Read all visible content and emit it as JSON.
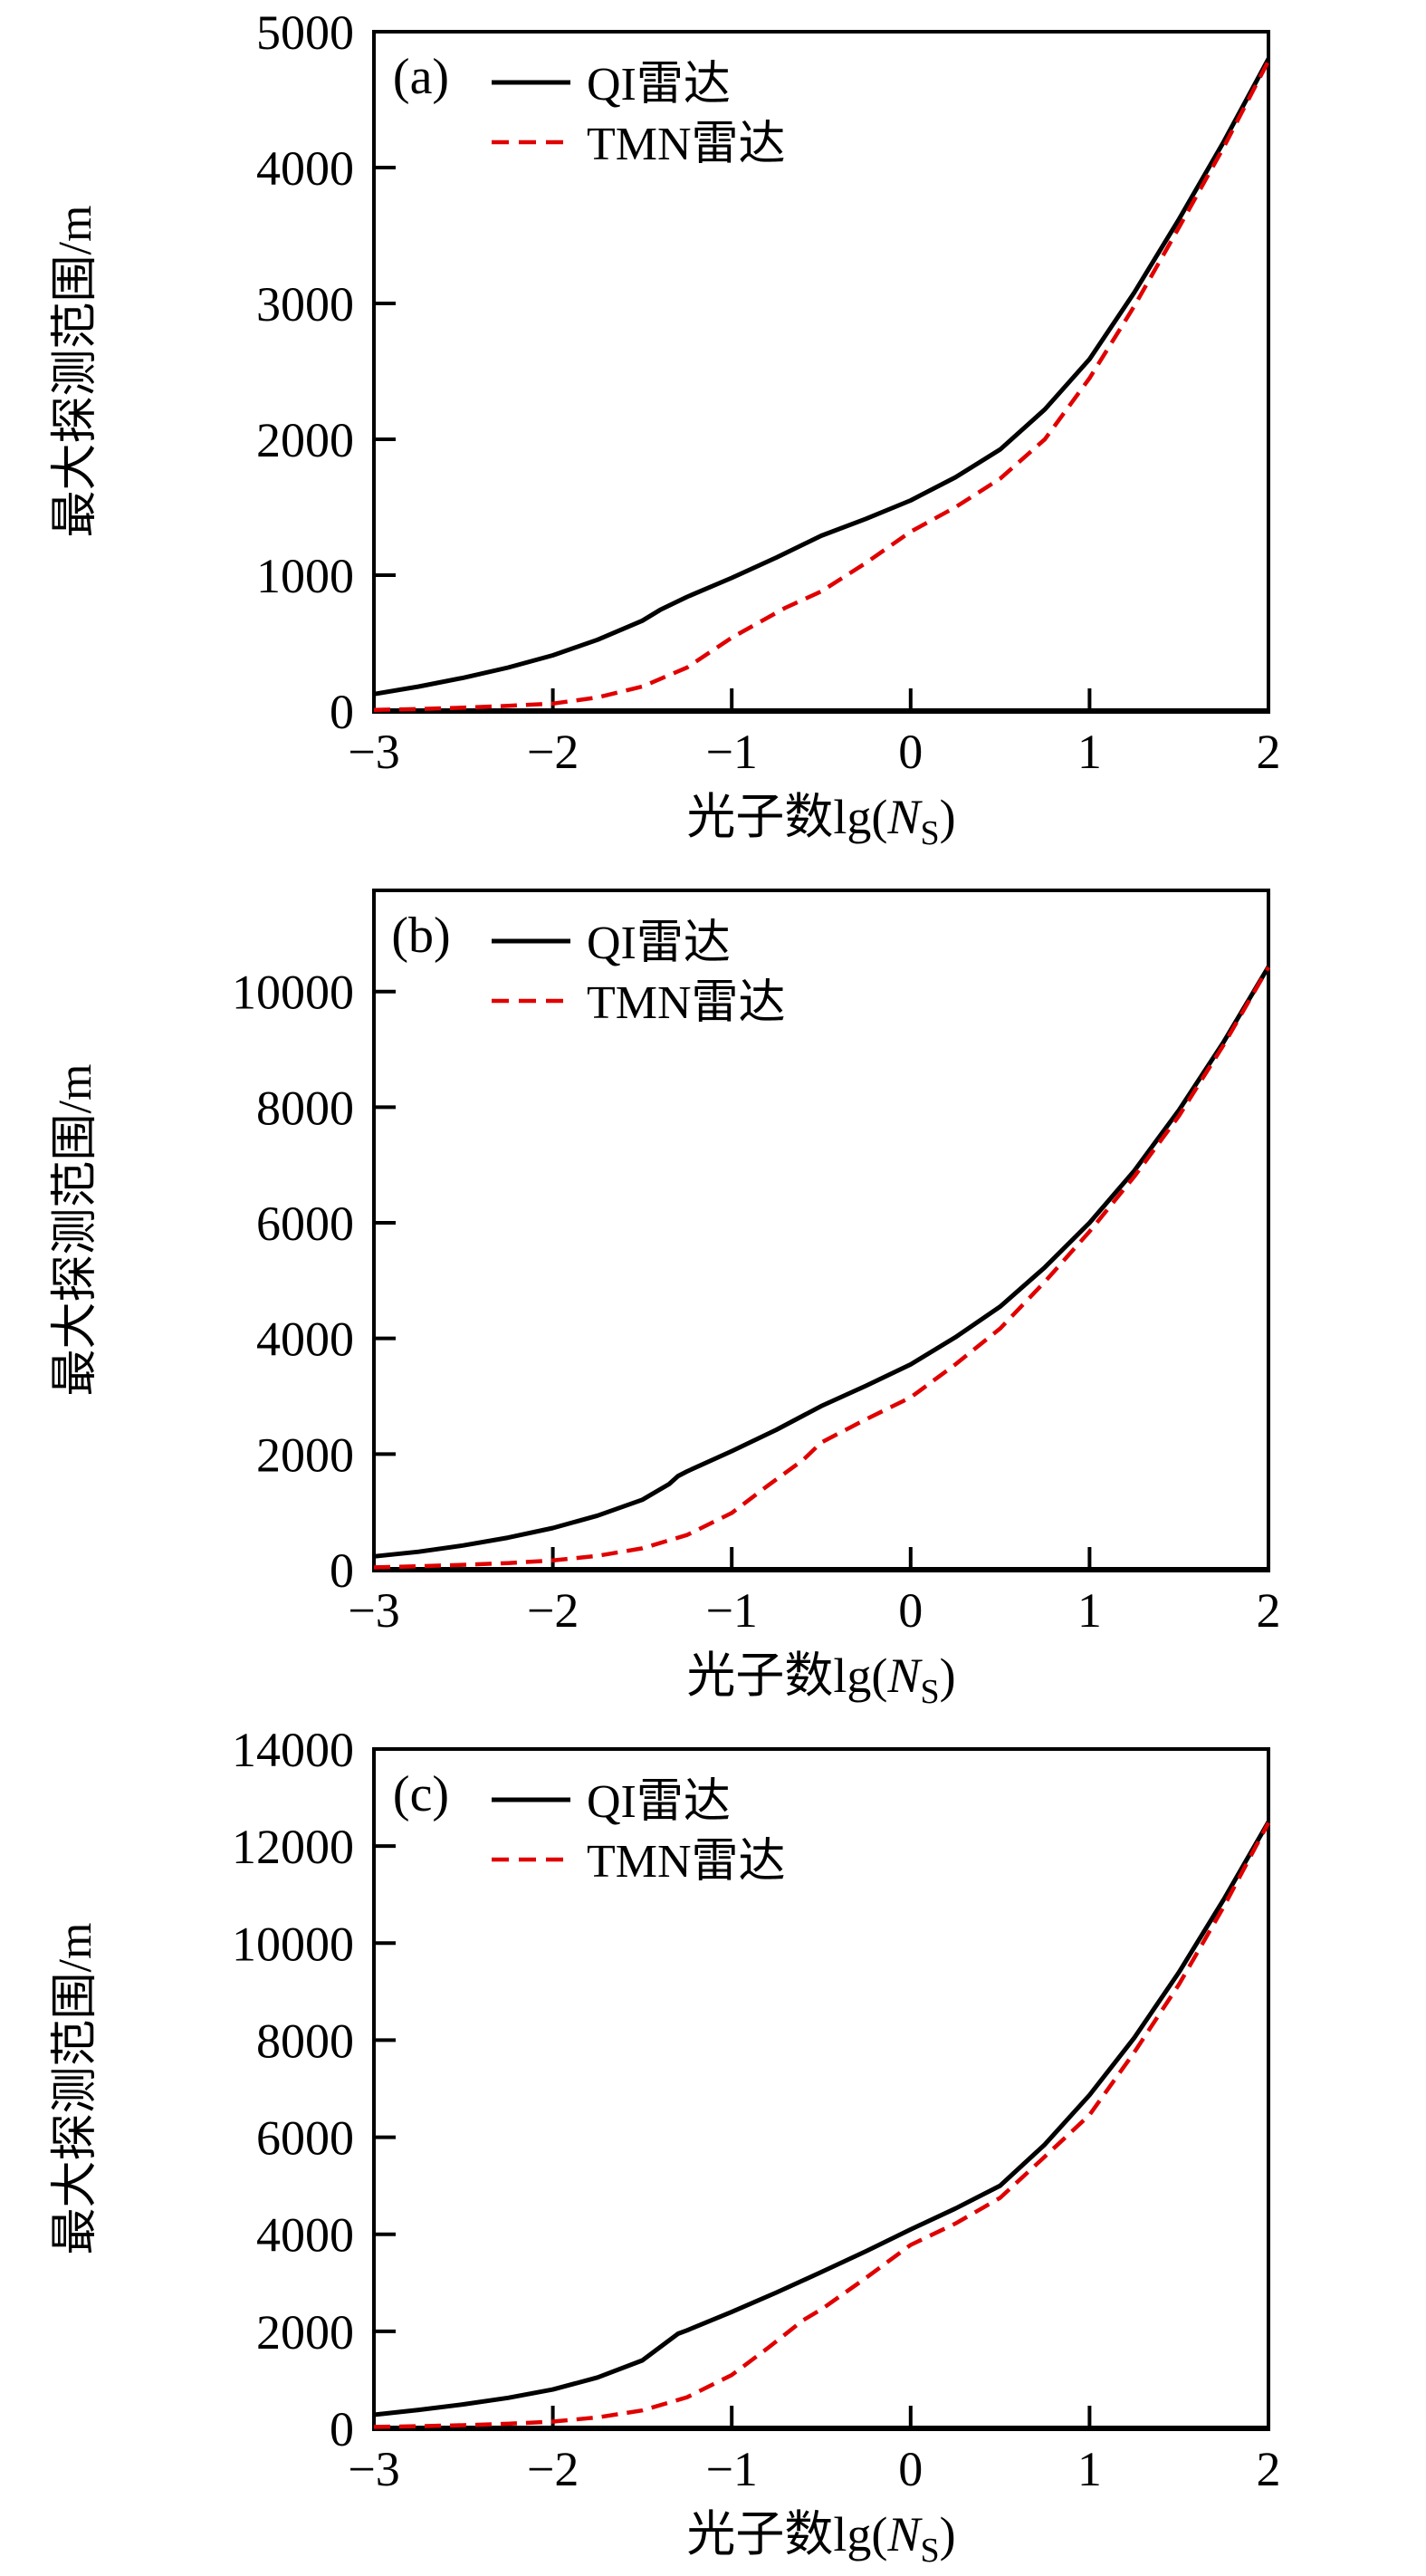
{
  "figure": {
    "background": "#ffffff",
    "black": "#000000",
    "accent_red": "#e00000",
    "panels_count": 3
  },
  "chart_data": [
    {
      "type": "line",
      "panel_label": "(a)",
      "xlabel": {
        "prefix": "光子数lg(",
        "var": "N",
        "sub": "S",
        "suffix": ")"
      },
      "ylabel": "最大探测范围/m",
      "xlim": [
        -3,
        2
      ],
      "ylim": [
        0,
        5000
      ],
      "xticks": [
        -3,
        -2,
        -1,
        0,
        1,
        2
      ],
      "yticks": [
        0,
        1000,
        2000,
        3000,
        4000,
        5000
      ],
      "grid": false,
      "legend_position": "top-left",
      "series": [
        {
          "name": "QI雷达",
          "color": "#000000",
          "style": "solid",
          "points": [
            [
              -3,
              125
            ],
            [
              -2.75,
              180
            ],
            [
              -2.5,
              245
            ],
            [
              -2.25,
              320
            ],
            [
              -2,
              410
            ],
            [
              -1.75,
              525
            ],
            [
              -1.5,
              665
            ],
            [
              -1.4,
              745
            ],
            [
              -1.25,
              840
            ],
            [
              -1,
              980
            ],
            [
              -0.75,
              1130
            ],
            [
              -0.5,
              1290
            ],
            [
              -0.25,
              1415
            ],
            [
              0,
              1550
            ],
            [
              0.25,
              1720
            ],
            [
              0.5,
              1925
            ],
            [
              0.75,
              2220
            ],
            [
              1,
              2590
            ],
            [
              1.25,
              3080
            ],
            [
              1.5,
              3620
            ],
            [
              1.75,
              4190
            ],
            [
              2,
              4800
            ]
          ]
        },
        {
          "name": "TMN雷达",
          "color": "#e00000",
          "style": "dashed",
          "points": [
            [
              -3,
              8
            ],
            [
              -2.75,
              15
            ],
            [
              -2.5,
              25
            ],
            [
              -2.25,
              38
            ],
            [
              -2,
              55
            ],
            [
              -1.75,
              100
            ],
            [
              -1.5,
              180
            ],
            [
              -1.25,
              320
            ],
            [
              -1,
              540
            ],
            [
              -0.85,
              650
            ],
            [
              -0.7,
              760
            ],
            [
              -0.5,
              880
            ],
            [
              -0.25,
              1090
            ],
            [
              0,
              1320
            ],
            [
              0.25,
              1500
            ],
            [
              0.5,
              1710
            ],
            [
              0.75,
              2000
            ],
            [
              1,
              2450
            ],
            [
              1.25,
              2980
            ],
            [
              1.5,
              3560
            ],
            [
              1.75,
              4150
            ],
            [
              2,
              4785
            ]
          ]
        }
      ]
    },
    {
      "type": "line",
      "panel_label": "(b)",
      "xlabel": {
        "prefix": "光子数lg(",
        "var": "N",
        "sub": "S",
        "suffix": ")"
      },
      "ylabel": "最大探测范围/m",
      "xlim": [
        -3,
        2
      ],
      "ylim": [
        0,
        11750
      ],
      "xticks": [
        -3,
        -2,
        -1,
        0,
        1,
        2
      ],
      "yticks": [
        0,
        2000,
        4000,
        6000,
        8000,
        10000
      ],
      "grid": false,
      "legend_position": "top-left",
      "series": [
        {
          "name": "QI雷达",
          "color": "#000000",
          "style": "solid",
          "points": [
            [
              -3,
              230
            ],
            [
              -2.75,
              310
            ],
            [
              -2.5,
              420
            ],
            [
              -2.25,
              555
            ],
            [
              -2,
              720
            ],
            [
              -1.75,
              935
            ],
            [
              -1.5,
              1210
            ],
            [
              -1.35,
              1480
            ],
            [
              -1.3,
              1620
            ],
            [
              -1.25,
              1700
            ],
            [
              -1,
              2050
            ],
            [
              -0.75,
              2420
            ],
            [
              -0.5,
              2830
            ],
            [
              -0.25,
              3180
            ],
            [
              0,
              3550
            ],
            [
              0.25,
              4020
            ],
            [
              0.5,
              4550
            ],
            [
              0.75,
              5230
            ],
            [
              1,
              6000
            ],
            [
              1.25,
              6900
            ],
            [
              1.5,
              7950
            ],
            [
              1.75,
              9130
            ],
            [
              2,
              10430
            ]
          ]
        },
        {
          "name": "TMN雷达",
          "color": "#e00000",
          "style": "dashed",
          "points": [
            [
              -3,
              40
            ],
            [
              -2.75,
              60
            ],
            [
              -2.5,
              85
            ],
            [
              -2.25,
              115
            ],
            [
              -2,
              160
            ],
            [
              -1.75,
              240
            ],
            [
              -1.5,
              370
            ],
            [
              -1.25,
              600
            ],
            [
              -1,
              980
            ],
            [
              -0.8,
              1450
            ],
            [
              -0.6,
              1900
            ],
            [
              -0.5,
              2200
            ],
            [
              -0.25,
              2600
            ],
            [
              0,
              2980
            ],
            [
              0.25,
              3550
            ],
            [
              0.5,
              4170
            ],
            [
              0.75,
              4980
            ],
            [
              1,
              5850
            ],
            [
              1.25,
              6800
            ],
            [
              1.5,
              7850
            ],
            [
              1.75,
              9080
            ],
            [
              2,
              10420
            ]
          ]
        }
      ]
    },
    {
      "type": "line",
      "panel_label": "(c)",
      "xlabel": {
        "prefix": "光子数lg(",
        "var": "N",
        "sub": "S",
        "suffix": ")"
      },
      "ylabel": "最大探测范围/m",
      "xlim": [
        -3,
        2
      ],
      "ylim": [
        0,
        14000
      ],
      "xticks": [
        -3,
        -2,
        -1,
        0,
        1,
        2
      ],
      "yticks": [
        0,
        2000,
        4000,
        6000,
        8000,
        10000,
        12000,
        14000
      ],
      "grid": false,
      "legend_position": "top-left",
      "series": [
        {
          "name": "QI雷达",
          "color": "#000000",
          "style": "solid",
          "points": [
            [
              -3,
              280
            ],
            [
              -2.75,
              380
            ],
            [
              -2.5,
              495
            ],
            [
              -2.25,
              630
            ],
            [
              -2,
              800
            ],
            [
              -1.75,
              1050
            ],
            [
              -1.5,
              1400
            ],
            [
              -1.3,
              1950
            ],
            [
              -1.25,
              2020
            ],
            [
              -1,
              2400
            ],
            [
              -0.75,
              2800
            ],
            [
              -0.5,
              3220
            ],
            [
              -0.25,
              3650
            ],
            [
              0,
              4100
            ],
            [
              0.25,
              4530
            ],
            [
              0.5,
              5000
            ],
            [
              0.75,
              5850
            ],
            [
              1,
              6870
            ],
            [
              1.25,
              8050
            ],
            [
              1.5,
              9400
            ],
            [
              1.75,
              10900
            ],
            [
              2,
              12500
            ]
          ]
        },
        {
          "name": "TMN雷达",
          "color": "#e00000",
          "style": "dashed",
          "points": [
            [
              -3,
              30
            ],
            [
              -2.75,
              45
            ],
            [
              -2.5,
              65
            ],
            [
              -2.25,
              95
            ],
            [
              -2,
              140
            ],
            [
              -1.75,
              225
            ],
            [
              -1.5,
              370
            ],
            [
              -1.25,
              640
            ],
            [
              -1,
              1100
            ],
            [
              -0.8,
              1650
            ],
            [
              -0.6,
              2230
            ],
            [
              -0.5,
              2450
            ],
            [
              -0.25,
              3100
            ],
            [
              0,
              3780
            ],
            [
              0.25,
              4220
            ],
            [
              0.5,
              4750
            ],
            [
              0.75,
              5600
            ],
            [
              1,
              6460
            ],
            [
              1.25,
              7750
            ],
            [
              1.5,
              9150
            ],
            [
              1.75,
              10750
            ],
            [
              2,
              12480
            ]
          ]
        }
      ]
    }
  ]
}
